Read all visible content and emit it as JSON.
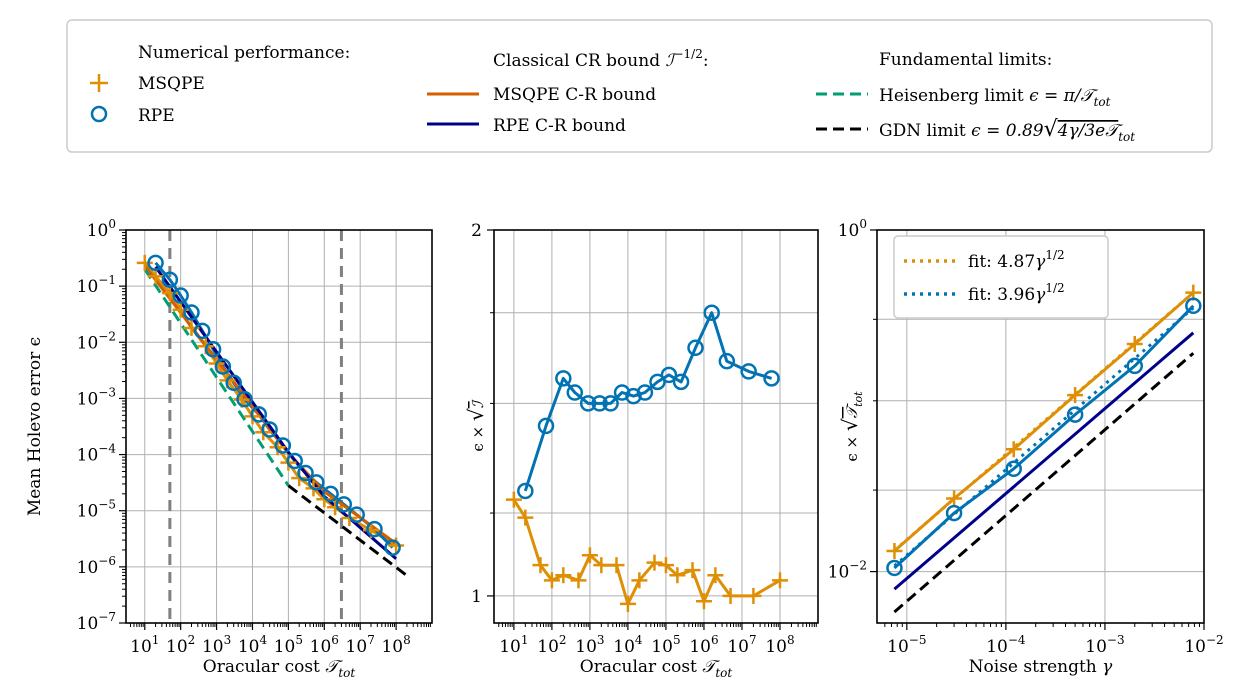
{
  "legend": {
    "groups": [
      {
        "title": "Numerical performance:",
        "entries": [
          {
            "label": "MSQPE",
            "marker": "plus",
            "color": "#de8f05"
          },
          {
            "label": "RPE",
            "marker": "circle",
            "color": "#0173b2"
          }
        ]
      },
      {
        "title": "Classical CR bound ℐ⁻¹ᐟ²:",
        "title_parts": [
          "Classical CR bound ",
          "ℐ",
          "−1/2",
          ":"
        ],
        "entries": [
          {
            "label": "MSQPE C-R bound",
            "line": "solid",
            "color": "#d55e00"
          },
          {
            "label": "RPE C-R bound",
            "line": "solid",
            "color": "#00008b"
          }
        ]
      },
      {
        "title": "Fundamental limits:",
        "entries": [
          {
            "label": "Heisenberg limit ϵ = π/𝒯_tot",
            "label_parts": [
              "Heisenberg limit ",
              "ϵ = π/𝒯",
              "tot"
            ],
            "line": "dashed",
            "color": "#029e73"
          },
          {
            "label": "GDN limit ϵ = 0.89√(4γ/3e𝒯_tot)",
            "label_parts": [
              "GDN limit ",
              "ϵ = 0.89",
              "4γ/3e𝒯",
              "tot"
            ],
            "line": "dashed",
            "color": "#000000"
          }
        ]
      }
    ]
  },
  "chart_data": [
    {
      "type": "line",
      "panel": "left",
      "xscale": "log",
      "yscale": "log",
      "xlim": [
        3,
        1000000000.0
      ],
      "ylim": [
        1e-07,
        1
      ],
      "xlabel": "Oracular cost 𝒯_tot",
      "xlabel_parts": [
        "Oracular cost ",
        "𝒯",
        "tot"
      ],
      "ylabel": "Mean Holevo error ϵ",
      "xticks": [
        10,
        100,
        1000,
        10000,
        100000,
        1000000,
        10000000,
        100000000
      ],
      "xtick_labels": [
        "10¹",
        "10²",
        "10³",
        "10⁴",
        "10⁵",
        "10⁶",
        "10⁷",
        "10⁸"
      ],
      "xtick_exps": [
        "1",
        "2",
        "3",
        "4",
        "5",
        "6",
        "7",
        "8"
      ],
      "yticks": [
        1e-07,
        1e-06,
        1e-05,
        0.0001,
        0.001,
        0.01,
        0.1,
        1
      ],
      "ytick_exps": [
        "−7",
        "−6",
        "−5",
        "−4",
        "−3",
        "−2",
        "−1",
        "0"
      ],
      "vlines": [
        {
          "x": 50,
          "style": "dashed",
          "color": "#808080"
        },
        {
          "x": 3000000,
          "style": "dashed",
          "color": "#808080"
        }
      ],
      "series": [
        {
          "name": "MSQPE",
          "marker": "plus",
          "color": "#de8f05",
          "x": [
            10,
            20,
            50,
            100,
            200,
            500,
            1000,
            2000,
            5000,
            10000,
            20000,
            50000,
            100000,
            200000,
            500000,
            1000000,
            2000000,
            5000000,
            20000000,
            100000000
          ],
          "y": [
            0.26,
            0.15,
            0.075,
            0.038,
            0.018,
            0.0085,
            0.0042,
            0.0021,
            0.00095,
            0.00048,
            0.00025,
            0.000135,
            7.2e-05,
            3.8e-05,
            2.5e-05,
            1.6e-05,
            1.15e-05,
            7.4e-06,
            4.5e-06,
            2.4e-06
          ]
        },
        {
          "name": "RPE",
          "marker": "circle",
          "color": "#0173b2",
          "x": [
            20,
            50,
            100,
            200,
            400,
            800,
            1500,
            3000,
            6000,
            15000,
            30000,
            70000,
            150000,
            300000,
            600000,
            1500000,
            3500000,
            8000000,
            25000000,
            80000000
          ],
          "y": [
            0.26,
            0.13,
            0.068,
            0.034,
            0.016,
            0.0075,
            0.0037,
            0.0019,
            0.00097,
            0.00052,
            0.00028,
            0.000145,
            7.7e-05,
            4.7e-05,
            3.2e-05,
            2e-05,
            1.3e-05,
            8.5e-06,
            4.7e-06,
            2.2e-06
          ]
        },
        {
          "name": "MSQPE C-R bound",
          "line": "solid",
          "color": "#d55e00",
          "x": [
            10,
            100000,
            1000000,
            100000000
          ],
          "y": [
            0.23,
            0.000105,
            2.2e-05,
            2.6e-06
          ]
        },
        {
          "name": "RPE C-R bound",
          "line": "solid",
          "color": "#00008b",
          "x": [
            20,
            100000,
            1000000,
            100000000
          ],
          "y": [
            0.22,
            0.00011,
            1.8e-05,
            1.4e-06
          ]
        },
        {
          "name": "Heisenberg limit",
          "line": "dashed",
          "color": "#029e73",
          "x": [
            10,
            100000
          ],
          "y": [
            0.2,
            2.8e-05
          ]
        },
        {
          "name": "GDN limit",
          "line": "dashed",
          "color": "#000000",
          "x": [
            100000,
            200000000
          ],
          "y": [
            2.8e-05,
            7e-07
          ]
        }
      ]
    },
    {
      "type": "line",
      "panel": "middle",
      "xscale": "log",
      "yscale": "log",
      "xlim": [
        3,
        1000000000.0
      ],
      "ylim": [
        0.95,
        2.0
      ],
      "xlabel": "Oracular cost 𝒯_tot",
      "xlabel_parts": [
        "Oracular cost ",
        "𝒯",
        "tot"
      ],
      "ylabel": "ϵ × √ℐ",
      "ylabel_parts": [
        "ϵ × ",
        "ℐ"
      ],
      "xticks": [
        10,
        100,
        1000,
        10000,
        100000,
        1000000,
        10000000,
        100000000
      ],
      "xtick_exps": [
        "1",
        "2",
        "3",
        "4",
        "5",
        "6",
        "7",
        "8"
      ],
      "yticks": [
        1,
        2
      ],
      "ytick_labels": [
        "1",
        "2"
      ],
      "ygrid_extra": [
        1.17,
        1.44,
        1.71
      ],
      "series": [
        {
          "name": "MSQPE",
          "marker": "plus",
          "color": "#de8f05",
          "x": [
            10,
            20,
            50,
            100,
            200,
            500,
            1000,
            2000,
            5000,
            10000,
            20000,
            50000,
            100000,
            200000,
            500000,
            1000000,
            2000000,
            5000000,
            20000000,
            100000000
          ],
          "y": [
            1.2,
            1.16,
            1.06,
            1.03,
            1.04,
            1.03,
            1.08,
            1.06,
            1.06,
            0.985,
            1.03,
            1.065,
            1.06,
            1.04,
            1.05,
            0.99,
            1.04,
            1.0,
            1.0,
            1.03
          ]
        },
        {
          "name": "RPE",
          "marker": "circle",
          "color": "#0173b2",
          "x": [
            20,
            70,
            200,
            400,
            900,
            1800,
            3500,
            7000,
            14000,
            28000,
            60000,
            120000,
            250000,
            600000,
            1600000,
            4000000,
            15000000,
            60000000
          ],
          "y": [
            1.22,
            1.38,
            1.51,
            1.47,
            1.44,
            1.44,
            1.44,
            1.47,
            1.46,
            1.47,
            1.5,
            1.52,
            1.5,
            1.6,
            1.71,
            1.56,
            1.53,
            1.51
          ]
        }
      ]
    },
    {
      "type": "line",
      "panel": "right",
      "xscale": "log",
      "yscale": "log",
      "xlim": [
        5e-06,
        0.01
      ],
      "ylim": [
        0.005,
        1
      ],
      "xlabel": "Noise strength γ",
      "xlabel_parts": [
        "Noise strength ",
        "γ"
      ],
      "ylabel": "ϵ × √𝒯_tot",
      "ylabel_parts": [
        "ϵ × ",
        "𝒯",
        "tot"
      ],
      "xticks": [
        1e-05,
        0.0001,
        0.001,
        0.01
      ],
      "xtick_exps": [
        "−5",
        "−4",
        "−3",
        "−2"
      ],
      "yticks": [
        0.01,
        1
      ],
      "ytick_exps": [
        "−2",
        "0"
      ],
      "ygrid_extra": [
        0.03,
        0.1,
        0.3
      ],
      "series": [
        {
          "name": "MSQPE",
          "marker": "plus",
          "color": "#de8f05",
          "x": [
            7.5e-06,
            3e-05,
            0.00012,
            0.0005,
            0.002,
            0.0078
          ],
          "y": [
            0.0132,
            0.0268,
            0.052,
            0.108,
            0.215,
            0.43
          ]
        },
        {
          "name": "RPE",
          "marker": "circle",
          "color": "#0173b2",
          "x": [
            7.5e-06,
            3e-05,
            0.00012,
            0.0005,
            0.002,
            0.0078
          ],
          "y": [
            0.0105,
            0.022,
            0.04,
            0.083,
            0.16,
            0.36
          ]
        },
        {
          "name": "fit: 4.87γ^1/2",
          "line": "dotted",
          "color": "#de8f05",
          "x": [
            7.5e-06,
            0.0078
          ],
          "y": [
            0.0133,
            0.43
          ]
        },
        {
          "name": "fit: 3.96γ^1/2",
          "line": "dotted",
          "color": "#0173b2",
          "x": [
            7.5e-06,
            0.0078
          ],
          "y": [
            0.0108,
            0.35
          ]
        },
        {
          "name": "RPE C-R bound",
          "line": "solid",
          "color": "#00008b",
          "x": [
            7.5e-06,
            0.0078
          ],
          "y": [
            0.0079,
            0.25
          ]
        },
        {
          "name": "GDN limit",
          "line": "dashed",
          "color": "#000000",
          "x": [
            7.5e-06,
            0.0078
          ],
          "y": [
            0.0058,
            0.19
          ]
        }
      ],
      "legend": [
        {
          "label": "fit: 4.87γ^1/2",
          "label_parts": [
            "fit: 4.87",
            "γ",
            "1/2"
          ],
          "color": "#de8f05"
        },
        {
          "label": "fit: 3.96γ^1/2",
          "label_parts": [
            "fit: 3.96",
            "γ",
            "1/2"
          ],
          "color": "#0173b2"
        }
      ]
    }
  ]
}
